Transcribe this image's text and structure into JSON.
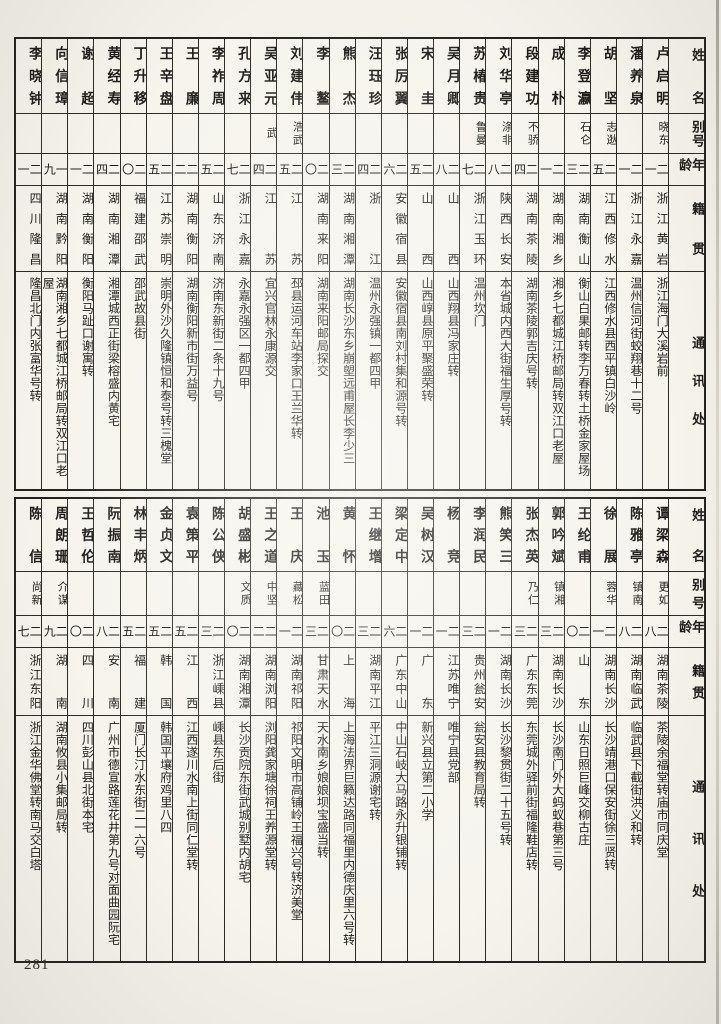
{
  "page": {
    "number": "281"
  },
  "headers": {
    "name": "姓名",
    "alias": "别号",
    "age": "年龄",
    "native": "籍贯",
    "address": "通讯处"
  },
  "tables": [
    {
      "people": [
        {
          "name": "李晓钟",
          "alias": "",
          "age": "二一",
          "native": "四川隆昌",
          "address": "隆昌北门内张富华号转"
        },
        {
          "name": "向信璋",
          "alias": "",
          "age": "一九",
          "native": "湖南黔阳",
          "address": "湖南湘乡七都城江桥邮局转双江口老屋"
        },
        {
          "name": "谢超",
          "alias": "",
          "age": "二一",
          "native": "湖南衡阳",
          "address": "衡阳马趾口谢寓转"
        },
        {
          "name": "黄经寿",
          "alias": "",
          "age": "二四",
          "native": "湖南湘潭",
          "address": "湘潭城西正街梁榕盛内黄宅"
        },
        {
          "name": "丁升移",
          "alias": "",
          "age": "二〇",
          "native": "福建邵武",
          "address": "邵武故县街"
        },
        {
          "name": "王辛盘",
          "alias": "",
          "age": "二五",
          "native": "江苏崇明",
          "address": "崇明外沙久隆镇恒和泰号转三槐堂"
        },
        {
          "name": "王廉",
          "alias": "",
          "age": "二二",
          "native": "湖南衡阳",
          "address": "湖南衡阳新市街万益号"
        },
        {
          "name": "李祚周",
          "alias": "",
          "age": "二五",
          "native": "山东济南",
          "address": "济南东新街二条十九号"
        },
        {
          "name": "孔方来",
          "alias": "",
          "age": "二七",
          "native": "浙江永嘉",
          "address": "永嘉永强区一都四甲"
        },
        {
          "name": "吴亚元",
          "alias": "武",
          "age": "二四",
          "native": "江苏",
          "address": "宜兴官林永康源交"
        },
        {
          "name": "刘建伟",
          "alias": "浩武",
          "age": "二五",
          "native": "江苏",
          "address": "邳县运河车站李家口王兰华转"
        },
        {
          "name": "李鳌",
          "alias": "",
          "age": "二〇",
          "native": "湖南来阳",
          "address": "湖南来阳邮局探交"
        },
        {
          "name": "熊杰",
          "alias": "",
          "age": "二三",
          "native": "湖南湘潭",
          "address": "湖南长沙东乡崩塱远甫屋长李少三"
        },
        {
          "name": "汪珏珍",
          "alias": "",
          "age": "二四",
          "native": "浙江",
          "address": "温州永强镇一都四甲"
        },
        {
          "name": "张厉翼",
          "alias": "",
          "age": "二六",
          "native": "安徽宿县",
          "address": "安徽宿县南刘村集和源号转"
        },
        {
          "name": "宋圭",
          "alias": "",
          "age": "二五",
          "native": "山西",
          "address": "山西崞县原平聚盛荣转"
        },
        {
          "name": "吴月卿",
          "alias": "",
          "age": "二八",
          "native": "山西",
          "address": "山西翔县冯家庄转"
        },
        {
          "name": "苏椿贵",
          "alias": "鲁曼",
          "age": "二七",
          "native": "浙江玉环",
          "address": "温州坎门"
        },
        {
          "name": "刘华亭",
          "alias": "涤非",
          "age": "二八",
          "native": "陕西长安",
          "address": "本省城内西大街福生厚号转"
        },
        {
          "name": "段建功",
          "alias": "不骄",
          "age": "二四",
          "native": "湖南茶陵",
          "address": "湖南茶陵郭吉庆号转"
        },
        {
          "name": "成朴",
          "alias": "",
          "age": "二一",
          "native": "湖南湘乡",
          "address": "湘乡七都城江桥邮局转双江口老屋"
        },
        {
          "name": "李登瀛",
          "alias": "石仑",
          "age": "二三",
          "native": "湖南衡山",
          "address": "衡山白果邮转李万春转土桥金家屋场"
        },
        {
          "name": "胡坚",
          "alias": "志逖",
          "age": "二五",
          "native": "江西修水",
          "address": "江西修水县西平镇白沙岭"
        },
        {
          "name": "潘养泉",
          "alias": "",
          "age": "二一",
          "native": "浙江永嘉",
          "address": "温州信河街蛟翔巷十二号"
        },
        {
          "name": "卢启明",
          "alias": "晓东",
          "age": "二一",
          "native": "浙江黄岩",
          "address": "浙江海门大溪岩前"
        }
      ]
    },
    {
      "people": [
        {
          "name": "陈信",
          "alias": "尚新",
          "age": "二七",
          "native": "浙江东阳",
          "address": "浙江金华佛堂转南马交白塔"
        },
        {
          "name": "周朗珊",
          "alias": "介谋",
          "age": "二九",
          "native": "湖南",
          "address": "湖南攸县小集邮局转"
        },
        {
          "name": "王哲伦",
          "alias": "",
          "age": "二〇",
          "native": "四川",
          "address": "四川彭山县北街本宅"
        },
        {
          "name": "阮振南",
          "alias": "",
          "age": "二八",
          "native": "安南",
          "address": "广州市德宣路莲花井第九号对面曲园阮宅"
        },
        {
          "name": "林丰炳",
          "alias": "",
          "age": "二五",
          "native": "福建",
          "address": "厦门长汀水东街二一六号"
        },
        {
          "name": "金贞文",
          "alias": "",
          "age": "二五",
          "native": "韩国",
          "address": "韩国平壤府鸡里八四"
        },
        {
          "name": "袁策平",
          "alias": "",
          "age": "二五",
          "native": "江西",
          "address": "江西遂川水南上街同仁堂转"
        },
        {
          "name": "陈公侠",
          "alias": "",
          "age": "二三",
          "native": "浙江嵊县",
          "address": "嵊县东后街"
        },
        {
          "name": "胡盛彬",
          "alias": "文质",
          "age": "二〇",
          "native": "湖南湘潭",
          "address": "长沙贡院东街武城别墅内胡宅"
        },
        {
          "name": "王之道",
          "alias": "中坚",
          "age": "二二",
          "native": "湖南浏阳",
          "address": "浏阳龚家塘徐祠王养源堂转"
        },
        {
          "name": "王庆",
          "alias": "藏松",
          "age": "二一",
          "native": "湖南祁阳",
          "address": "祁阳文明市高铺岭王福兴号转济美堂"
        },
        {
          "name": "池玉",
          "alias": "蓝田",
          "age": "二三",
          "native": "甘肃天水",
          "address": "天水南乡娘娘坝宝盛当转"
        },
        {
          "name": "黄怀",
          "alias": "",
          "age": "二〇",
          "native": "上海",
          "address": "上海法界巨籁达路同福里内德庆里六号转"
        },
        {
          "name": "王继增",
          "alias": "",
          "age": "二三",
          "native": "湖南平江",
          "address": "平江三洞源谢宅转"
        },
        {
          "name": "梁定中",
          "alias": "",
          "age": "二六",
          "native": "广东中山",
          "address": "中山石岐大马路永升银铺转"
        },
        {
          "name": "吴树汉",
          "alias": "",
          "age": "二一",
          "native": "广东",
          "address": "新兴县立第二小学"
        },
        {
          "name": "杨竞",
          "alias": "",
          "age": "二一",
          "native": "江苏唯宁",
          "address": "唯宁县党部"
        },
        {
          "name": "李润民",
          "alias": "",
          "age": "二三",
          "native": "贵州瓮安",
          "address": "瓮安县教育局转"
        },
        {
          "name": "熊笑三",
          "alias": "",
          "age": "二一",
          "native": "湖南长沙",
          "address": "长沙黎贯街二十五号转"
        },
        {
          "name": "张杰英",
          "alias": "乃仁",
          "age": "二三",
          "native": "广东东莞",
          "address": "东莞城外驿前街福隆鞋店转"
        },
        {
          "name": "郭吟斌",
          "alias": "镇湘",
          "age": "二三",
          "native": "湖南长沙",
          "address": "长沙南门外大蚂蚁巷第三号"
        },
        {
          "name": "王纶甫",
          "alias": "",
          "age": "二〇",
          "native": "山东",
          "address": "山东日照巨峰交柳古庄"
        },
        {
          "name": "徐展",
          "alias": "蓉华",
          "age": "二一",
          "native": "湖南长沙",
          "address": "长沙靖港口保安街徐三贤转"
        },
        {
          "name": "陈雅亭",
          "alias": "镇南",
          "age": "二八",
          "native": "湖南临武",
          "address": "临武县下截街洪义和转"
        },
        {
          "name": "谭梁森",
          "alias": "更如",
          "age": "二八",
          "native": "湖南茶陵",
          "address": "茶陵余福堂转庙市同庆堂"
        }
      ]
    }
  ]
}
